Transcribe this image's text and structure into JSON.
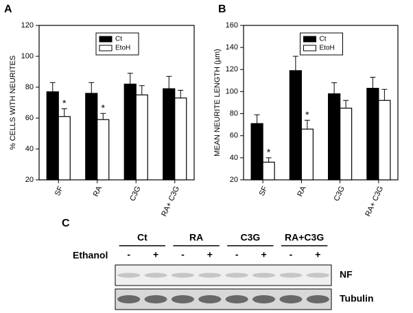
{
  "chart_data": [
    {
      "type": "bar",
      "panel": "A",
      "ylabel": "% CELLS WITH NEURITES",
      "categories": [
        "SF",
        "RA",
        "C3G",
        "RA+ C3G"
      ],
      "series": [
        {
          "name": "Ct",
          "color": "#000000",
          "values": [
            77,
            76,
            82,
            79
          ],
          "errors": [
            6,
            7,
            7,
            8
          ]
        },
        {
          "name": "EtoH",
          "color": "#ffffff",
          "values": [
            61,
            59,
            75,
            73
          ],
          "errors": [
            5,
            4,
            6,
            5
          ],
          "significance": [
            "*",
            "*",
            null,
            null
          ]
        }
      ],
      "ylim": [
        20,
        120
      ],
      "yticks": [
        20,
        40,
        60,
        80,
        100,
        120
      ],
      "legend": "top"
    },
    {
      "type": "bar",
      "panel": "B",
      "ylabel": "MEAN NEURITE LENGTH (µm)",
      "categories": [
        "SF",
        "RA",
        "C3G",
        "RA+ C3G"
      ],
      "series": [
        {
          "name": "Ct",
          "color": "#000000",
          "values": [
            71,
            119,
            98,
            103
          ],
          "errors": [
            8,
            13,
            10,
            10
          ]
        },
        {
          "name": "EtoH",
          "color": "#ffffff",
          "values": [
            36,
            66,
            85,
            92
          ],
          "errors": [
            4,
            8,
            7,
            10
          ],
          "significance": [
            "*",
            "*",
            null,
            null
          ]
        }
      ],
      "ylim": [
        20,
        160
      ],
      "yticks": [
        20,
        40,
        60,
        80,
        100,
        120,
        140,
        160
      ],
      "legend": "top"
    }
  ],
  "blot": {
    "panel": "C",
    "groups": [
      "Ct",
      "RA",
      "C3G",
      "RA+C3G"
    ],
    "treatment": "Ethanol",
    "lanes": [
      "-",
      "+",
      "-",
      "+",
      "-",
      "+",
      "-",
      "+"
    ],
    "rows": [
      "NF",
      "Tubulin"
    ]
  }
}
